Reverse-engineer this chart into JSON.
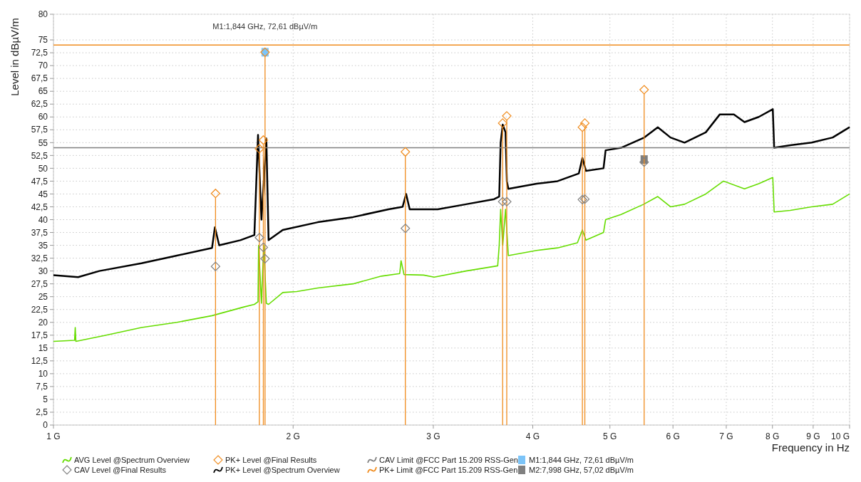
{
  "chart_data": {
    "type": "line",
    "xlabel": "Frequency in Hz",
    "ylabel": "Level in dBµV/m",
    "log": "x",
    "xlim": [
      1,
      10
    ],
    "xticks": [
      {
        "value": 1,
        "label": "1 G"
      },
      {
        "value": 2,
        "label": "2 G"
      },
      {
        "value": 3,
        "label": "3 G"
      },
      {
        "value": 4,
        "label": "4 G"
      },
      {
        "value": 5,
        "label": "5 G"
      },
      {
        "value": 6,
        "label": "6 G"
      },
      {
        "value": 7,
        "label": "7 G"
      },
      {
        "value": 8,
        "label": "8 G"
      },
      {
        "value": 9,
        "label": "9 G"
      },
      {
        "value": 10,
        "label": "10 G"
      }
    ],
    "ylim": [
      0,
      80
    ],
    "yticks": [
      0,
      {
        "value": 2.5,
        "label": "2,5"
      },
      5,
      {
        "value": 7.5,
        "label": "7,5"
      },
      10,
      {
        "value": 12.5,
        "label": "12,5"
      },
      15,
      {
        "value": 17.5,
        "label": "17,5"
      },
      20,
      {
        "value": 22.5,
        "label": "22,5"
      },
      25,
      {
        "value": 27.5,
        "label": "27,5"
      },
      30,
      {
        "value": 32.5,
        "label": "32,5"
      },
      35,
      {
        "value": 37.5,
        "label": "37,5"
      },
      40,
      {
        "value": 42.5,
        "label": "42,5"
      },
      45,
      {
        "value": 47.5,
        "label": "47,5"
      },
      50,
      {
        "value": 52.5,
        "label": "52,5"
      },
      55,
      {
        "value": 57.5,
        "label": "57,5"
      },
      60,
      {
        "value": 62.5,
        "label": "62,5"
      },
      65,
      {
        "value": 67.5,
        "label": "67,5"
      },
      70,
      {
        "value": 72.5,
        "label": "72,5"
      },
      75,
      80
    ],
    "grid": true,
    "legend": "bottom",
    "annotations": [
      {
        "text": "M1:1,844 GHz, 72,61 dBµV/m",
        "x": 1.844,
        "y": 72.6
      }
    ],
    "series": [
      {
        "name": "AVG Level @Spectrum Overview",
        "color": "#66dd00",
        "x": [
          1.0,
          1.063,
          1.065,
          1.067,
          1.165,
          1.29,
          1.429,
          1.582,
          1.735,
          1.788,
          1.807,
          1.81,
          1.825,
          1.837,
          1.851,
          1.863,
          1.941,
          2.021,
          2.148,
          2.379,
          2.582,
          2.722,
          2.733,
          2.756,
          2.917,
          3.008,
          3.298,
          3.614,
          3.63,
          3.645,
          3.667,
          3.697,
          3.727,
          4.045,
          4.298,
          4.551,
          4.617,
          4.665,
          4.908,
          4.938,
          5.164,
          5.513,
          5.742,
          5.957,
          6.204,
          6.597,
          6.943,
          7.379,
          7.689,
          8.008,
          8.04,
          8.424,
          8.959,
          9.522,
          10.0
        ],
        "values": [
          16.3,
          16.5,
          19,
          16.3,
          17.5,
          19,
          20,
          21.3,
          23,
          23.5,
          24,
          35,
          23.7,
          35,
          23.7,
          23.5,
          25.8,
          26,
          26.7,
          27.5,
          29,
          29.5,
          32,
          29.3,
          29.2,
          28.8,
          30,
          31,
          35,
          42,
          35,
          42,
          33,
          34,
          34.5,
          35.5,
          38,
          36,
          37.5,
          40,
          41,
          43,
          44.5,
          42.5,
          43,
          45,
          47.5,
          46,
          47,
          48.2,
          41.5,
          41.8,
          42.5,
          43,
          45
        ]
      },
      {
        "name": "CAV Level @Final Results",
        "type": "scatter",
        "marker": "diamond",
        "color": "#808080",
        "x": [
          1.598,
          1.814,
          1.835,
          1.844,
          2.767,
          3.666,
          3.71,
          4.617,
          4.65,
          5.52
        ],
        "values": [
          30.9,
          36.5,
          34.6,
          32.4,
          38.3,
          43.5,
          43.5,
          43.9,
          44.0,
          51.2
        ]
      },
      {
        "name": "PK+ Level @Final Results",
        "type": "lollipop",
        "marker": "diamond",
        "color": "#f08c1e",
        "x": [
          1.598,
          1.814,
          1.835,
          1.844,
          2.767,
          3.666,
          3.71,
          4.617,
          4.65,
          5.52
        ],
        "values": [
          45.1,
          53.8,
          55.5,
          72.6,
          53.2,
          58.8,
          60.2,
          58.0,
          58.8,
          65.3
        ]
      },
      {
        "name": "PK+ Level @Spectrum Overview",
        "color": "#000000",
        "x": [
          1.0,
          1.074,
          1.142,
          1.29,
          1.429,
          1.582,
          1.595,
          1.615,
          1.717,
          1.788,
          1.807,
          1.825,
          1.851,
          1.863,
          1.941,
          2.148,
          2.379,
          2.635,
          2.745,
          2.773,
          2.802,
          3.039,
          3.298,
          3.578,
          3.63,
          3.645,
          3.667,
          3.697,
          3.711,
          3.727,
          4.045,
          4.298,
          4.57,
          4.617,
          4.665,
          4.908,
          4.938,
          5.164,
          5.524,
          5.742,
          5.957,
          6.204,
          6.597,
          6.871,
          7.156,
          7.379,
          7.689,
          8.008,
          8.04,
          8.424,
          8.959,
          9.522,
          10.0
        ],
        "values": [
          29.2,
          28.8,
          30,
          31.5,
          33,
          34.5,
          38.5,
          35,
          36,
          37,
          56.5,
          40,
          55.8,
          36,
          38,
          39.5,
          40.5,
          42,
          42.5,
          45,
          42,
          42,
          43,
          44,
          44.5,
          55,
          58.5,
          57,
          47.5,
          46,
          47,
          47.5,
          49,
          52,
          49.5,
          50,
          53.5,
          54,
          56,
          58,
          56,
          55,
          57,
          60.5,
          60.5,
          59,
          60,
          61.5,
          54,
          54.5,
          55,
          56,
          58
        ]
      },
      {
        "name": "CAV Limit @FCC Part 15.209 RSS-Gen",
        "color": "#808080",
        "x": [
          1,
          10
        ],
        "values": [
          54,
          54
        ]
      },
      {
        "name": "PK+ Limit @FCC Part 15.209 RSS-Gen",
        "color": "#f08c1e",
        "x": [
          1,
          10
        ],
        "values": [
          74,
          74
        ]
      },
      {
        "name": "M1:1,844 GHz, 72,61 dBµV/m",
        "type": "scatter",
        "marker": "square",
        "color": "#7cc4f8",
        "x": [
          1.844
        ],
        "values": [
          72.6
        ]
      },
      {
        "name": "M2:7,998 GHz, 57,02 dBµV/m",
        "type": "scatter",
        "marker": "square",
        "color": "#808080",
        "x": [
          5.52
        ],
        "values": [
          51.7
        ]
      }
    ]
  }
}
